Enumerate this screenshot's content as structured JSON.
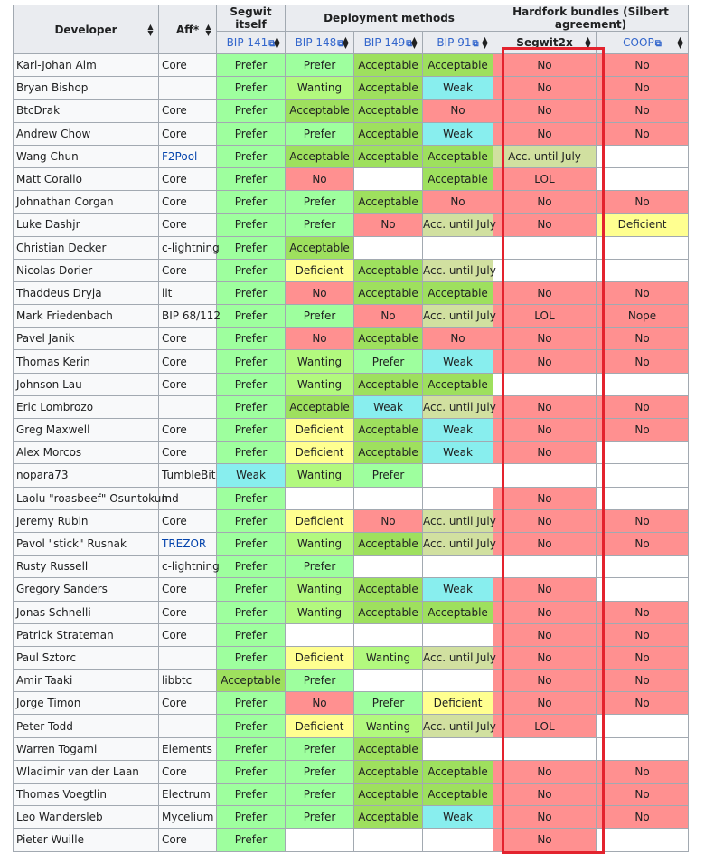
{
  "headers": {
    "developer": "Developer",
    "aff": "Aff*",
    "segwit_itself": "Segwit itself",
    "deployment_methods": "Deployment methods",
    "hardfork_bundles": "Hardfork bundles (Silbert agreement)",
    "bip141": "BIP 141",
    "bip148": "BIP 148",
    "bip149": "BIP 149",
    "bip91": "BIP 91",
    "segwit2x": "Segwit2x",
    "coop": "COOP"
  },
  "icons": {
    "sort": "sort-icon",
    "external_link": "external-link-icon"
  },
  "colors": {
    "Prefer": "#9eff9e",
    "Acceptable": "#9ee05e",
    "Wanting": "#b2f97e",
    "Weak": "#88eeee",
    "No": "#ff9090",
    "Deficient": "#ffff90",
    "Acc. until July": "#d1e0a0",
    "LOL": "#ff9090",
    "Nope": "#ff9090",
    "highlight_border": "#e3232e"
  },
  "rows": [
    {
      "dev": "Karl-Johan Alm",
      "aff": "Core",
      "link": false,
      "b141": "Prefer",
      "b148": "Prefer",
      "b149": "Acceptable",
      "b91": "Acceptable",
      "s2x": "No",
      "coop": "No"
    },
    {
      "dev": "Bryan Bishop",
      "aff": "",
      "link": false,
      "b141": "Prefer",
      "b148": "Wanting",
      "b149": "Acceptable",
      "b91": "Weak",
      "s2x": "No",
      "coop": "No"
    },
    {
      "dev": "BtcDrak",
      "aff": "Core",
      "link": false,
      "b141": "Prefer",
      "b148": "Acceptable",
      "b149": "Acceptable",
      "b91": "No",
      "s2x": "No",
      "coop": "No"
    },
    {
      "dev": "Andrew Chow",
      "aff": "Core",
      "link": false,
      "b141": "Prefer",
      "b148": "Prefer",
      "b149": "Acceptable",
      "b91": "Weak",
      "s2x": "No",
      "coop": "No"
    },
    {
      "dev": "Wang Chun",
      "aff": "F2Pool",
      "link": true,
      "b141": "Prefer",
      "b148": "Acceptable",
      "b149": "Acceptable",
      "b91": "Acceptable",
      "s2x": "Acc. until July",
      "coop": ""
    },
    {
      "dev": "Matt Corallo",
      "aff": "Core",
      "link": false,
      "b141": "Prefer",
      "b148": "No",
      "b149": "",
      "b91": "Acceptable",
      "s2x": "LOL",
      "coop": ""
    },
    {
      "dev": "Johnathan Corgan",
      "aff": "Core",
      "link": false,
      "b141": "Prefer",
      "b148": "Prefer",
      "b149": "Acceptable",
      "b91": "No",
      "s2x": "No",
      "coop": "No"
    },
    {
      "dev": "Luke Dashjr",
      "aff": "Core",
      "link": false,
      "b141": "Prefer",
      "b148": "Prefer",
      "b149": "No",
      "b91": "Acc. until July",
      "s2x": "No",
      "coop": "Deficient"
    },
    {
      "dev": "Christian Decker",
      "aff": "c-lightning",
      "link": false,
      "b141": "Prefer",
      "b148": "Acceptable",
      "b149": "",
      "b91": "",
      "s2x": "",
      "coop": ""
    },
    {
      "dev": "Nicolas Dorier",
      "aff": "Core",
      "link": false,
      "b141": "Prefer",
      "b148": "Deficient",
      "b149": "Acceptable",
      "b91": "Acc. until July",
      "s2x": "",
      "coop": ""
    },
    {
      "dev": "Thaddeus Dryja",
      "aff": "lit",
      "link": false,
      "b141": "Prefer",
      "b148": "No",
      "b149": "Acceptable",
      "b91": "Acceptable",
      "s2x": "No",
      "coop": "No"
    },
    {
      "dev": "Mark Friedenbach",
      "aff": "BIP 68/112",
      "link": false,
      "b141": "Prefer",
      "b148": "Prefer",
      "b149": "No",
      "b91": "Acc. until July",
      "s2x": "LOL",
      "coop": "Nope"
    },
    {
      "dev": "Pavel Janik",
      "aff": "Core",
      "link": false,
      "b141": "Prefer",
      "b148": "No",
      "b149": "Acceptable",
      "b91": "No",
      "s2x": "No",
      "coop": "No"
    },
    {
      "dev": "Thomas Kerin",
      "aff": "Core",
      "link": false,
      "b141": "Prefer",
      "b148": "Wanting",
      "b149": "Prefer",
      "b91": "Weak",
      "s2x": "No",
      "coop": "No"
    },
    {
      "dev": "Johnson Lau",
      "aff": "Core",
      "link": false,
      "b141": "Prefer",
      "b148": "Wanting",
      "b149": "Acceptable",
      "b91": "Acceptable",
      "s2x": "",
      "coop": ""
    },
    {
      "dev": "Eric Lombrozo",
      "aff": "",
      "link": false,
      "b141": "Prefer",
      "b148": "Acceptable",
      "b149": "Weak",
      "b91": "Acc. until July",
      "s2x": "No",
      "coop": "No"
    },
    {
      "dev": "Greg Maxwell",
      "aff": "Core",
      "link": false,
      "b141": "Prefer",
      "b148": "Deficient",
      "b149": "Acceptable",
      "b91": "Weak",
      "s2x": "No",
      "coop": "No"
    },
    {
      "dev": "Alex Morcos",
      "aff": "Core",
      "link": false,
      "b141": "Prefer",
      "b148": "Deficient",
      "b149": "Acceptable",
      "b91": "Weak",
      "s2x": "No",
      "coop": ""
    },
    {
      "dev": "nopara73",
      "aff": "TumbleBit",
      "link": false,
      "b141": "Weak",
      "b148": "Wanting",
      "b149": "Prefer",
      "b91": "",
      "s2x": "",
      "coop": ""
    },
    {
      "dev": "Laolu \"roasbeef\" Osuntokun",
      "aff": "Ind",
      "link": false,
      "b141": "Prefer",
      "b148": "",
      "b149": "",
      "b91": "",
      "s2x": "No",
      "coop": ""
    },
    {
      "dev": "Jeremy Rubin",
      "aff": "Core",
      "link": false,
      "b141": "Prefer",
      "b148": "Deficient",
      "b149": "No",
      "b91": "Acc. until July",
      "s2x": "No",
      "coop": "No"
    },
    {
      "dev": "Pavol \"stick\" Rusnak",
      "aff": "TREZOR",
      "link": true,
      "b141": "Prefer",
      "b148": "Wanting",
      "b149": "Acceptable",
      "b91": "Acc. until July",
      "s2x": "No",
      "coop": "No"
    },
    {
      "dev": "Rusty Russell",
      "aff": "c-lightning",
      "link": false,
      "b141": "Prefer",
      "b148": "Prefer",
      "b149": "",
      "b91": "",
      "s2x": "",
      "coop": ""
    },
    {
      "dev": "Gregory Sanders",
      "aff": "Core",
      "link": false,
      "b141": "Prefer",
      "b148": "Wanting",
      "b149": "Acceptable",
      "b91": "Weak",
      "s2x": "No",
      "coop": ""
    },
    {
      "dev": "Jonas Schnelli",
      "aff": "Core",
      "link": false,
      "b141": "Prefer",
      "b148": "Wanting",
      "b149": "Acceptable",
      "b91": "Acceptable",
      "s2x": "No",
      "coop": "No"
    },
    {
      "dev": "Patrick Strateman",
      "aff": "Core",
      "link": false,
      "b141": "Prefer",
      "b148": "",
      "b149": "",
      "b91": "",
      "s2x": "No",
      "coop": "No"
    },
    {
      "dev": "Paul Sztorc",
      "aff": "",
      "link": false,
      "b141": "Prefer",
      "b148": "Deficient",
      "b149": "Wanting",
      "b91": "Acc. until July",
      "s2x": "No",
      "coop": "No"
    },
    {
      "dev": "Amir Taaki",
      "aff": "libbtc",
      "link": false,
      "b141": "Acceptable",
      "b148": "Prefer",
      "b149": "",
      "b91": "",
      "s2x": "No",
      "coop": "No"
    },
    {
      "dev": "Jorge Timon",
      "aff": "Core",
      "link": false,
      "b141": "Prefer",
      "b148": "No",
      "b149": "Prefer",
      "b91": "Deficient",
      "s2x": "No",
      "coop": "No"
    },
    {
      "dev": "Peter Todd",
      "aff": "",
      "link": false,
      "b141": "Prefer",
      "b148": "Deficient",
      "b149": "Wanting",
      "b91": "Acc. until July",
      "s2x": "LOL",
      "coop": ""
    },
    {
      "dev": "Warren Togami",
      "aff": "Elements",
      "link": false,
      "b141": "Prefer",
      "b148": "Prefer",
      "b149": "Acceptable",
      "b91": "",
      "s2x": "",
      "coop": ""
    },
    {
      "dev": "Wladimir van der Laan",
      "aff": "Core",
      "link": false,
      "b141": "Prefer",
      "b148": "Prefer",
      "b149": "Acceptable",
      "b91": "Acceptable",
      "s2x": "No",
      "coop": "No"
    },
    {
      "dev": "Thomas Voegtlin",
      "aff": "Electrum",
      "link": false,
      "b141": "Prefer",
      "b148": "Prefer",
      "b149": "Acceptable",
      "b91": "Acceptable",
      "s2x": "No",
      "coop": "No"
    },
    {
      "dev": "Leo Wandersleb",
      "aff": "Mycelium",
      "link": false,
      "b141": "Prefer",
      "b148": "Prefer",
      "b149": "Acceptable",
      "b91": "Weak",
      "s2x": "No",
      "coop": "No"
    },
    {
      "dev": "Pieter Wuille",
      "aff": "Core",
      "link": false,
      "b141": "Prefer",
      "b148": "",
      "b149": "",
      "b91": "",
      "s2x": "No",
      "coop": ""
    }
  ]
}
